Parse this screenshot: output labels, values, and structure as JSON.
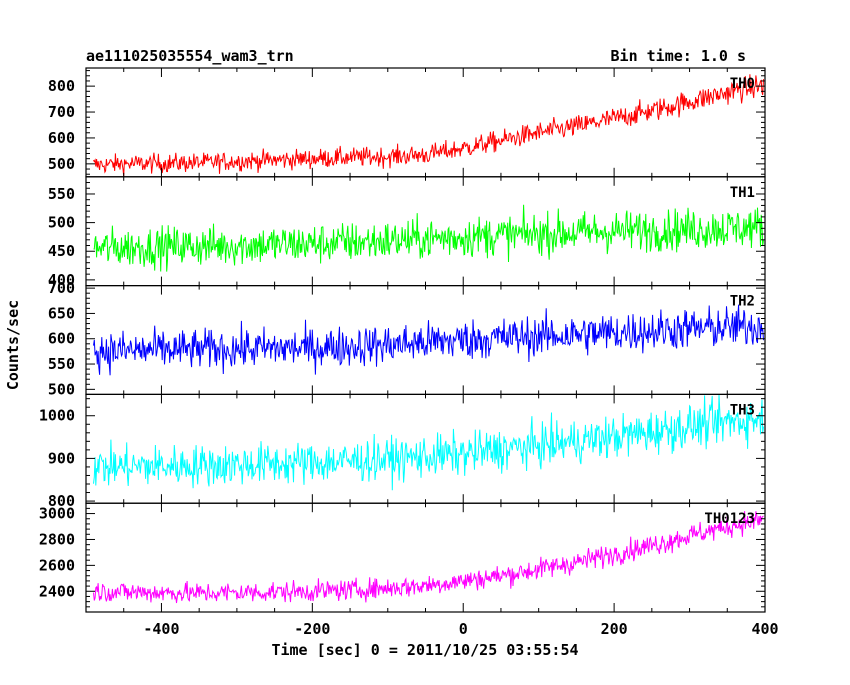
{
  "header": {
    "left_title": "ae111025035554_wam3_trn",
    "right_title": "Bin time: 1.0 s"
  },
  "chart_data": {
    "type": "line",
    "xlabel": "Time [sec] 0 = 2011/10/25 03:55:54",
    "ylabel": "Counts/sec",
    "xlim": [
      -500,
      400
    ],
    "x_ticks": [
      -400,
      -200,
      0,
      200,
      400
    ],
    "bin_time_s": 1.0,
    "grid": false,
    "panels": [
      {
        "label": "TH0",
        "color": "#ff0000",
        "ylim": [
          450,
          870
        ],
        "y_ticks": [
          500,
          600,
          700,
          800
        ],
        "points": [
          [
            -500,
            495
          ],
          [
            -450,
            500
          ],
          [
            -400,
            502
          ],
          [
            -350,
            505
          ],
          [
            -300,
            510
          ],
          [
            -250,
            515
          ],
          [
            -200,
            520
          ],
          [
            -150,
            525
          ],
          [
            -100,
            528
          ],
          [
            -50,
            535
          ],
          [
            0,
            560
          ],
          [
            50,
            590
          ],
          [
            100,
            620
          ],
          [
            150,
            645
          ],
          [
            200,
            675
          ],
          [
            250,
            705
          ],
          [
            300,
            740
          ],
          [
            350,
            775
          ],
          [
            400,
            805
          ]
        ]
      },
      {
        "label": "TH1",
        "color": "#00ff00",
        "ylim": [
          390,
          580
        ],
        "y_ticks": [
          400,
          450,
          500,
          550
        ],
        "points": [
          [
            -500,
            455
          ],
          [
            -400,
            458
          ],
          [
            -300,
            460
          ],
          [
            -200,
            463
          ],
          [
            -100,
            468
          ],
          [
            0,
            475
          ],
          [
            100,
            480
          ],
          [
            200,
            485
          ],
          [
            300,
            488
          ],
          [
            400,
            492
          ]
        ]
      },
      {
        "label": "TH2",
        "color": "#0000ff",
        "ylim": [
          490,
          705
        ],
        "y_ticks": [
          500,
          550,
          600,
          650,
          700
        ],
        "points": [
          [
            -500,
            575
          ],
          [
            -400,
            578
          ],
          [
            -300,
            580
          ],
          [
            -200,
            582
          ],
          [
            -100,
            588
          ],
          [
            0,
            598
          ],
          [
            100,
            605
          ],
          [
            200,
            612
          ],
          [
            300,
            620
          ],
          [
            400,
            625
          ]
        ]
      },
      {
        "label": "TH3",
        "color": "#00ffff",
        "ylim": [
          795,
          1050
        ],
        "y_ticks": [
          800,
          900,
          1000
        ],
        "points": [
          [
            -500,
            880
          ],
          [
            -400,
            882
          ],
          [
            -300,
            885
          ],
          [
            -200,
            890
          ],
          [
            -100,
            898
          ],
          [
            0,
            910
          ],
          [
            100,
            930
          ],
          [
            200,
            950
          ],
          [
            300,
            975
          ],
          [
            400,
            995
          ]
        ]
      },
      {
        "label": "TH0123",
        "color": "#ff00ff",
        "ylim": [
          2240,
          3080
        ],
        "y_ticks": [
          2400,
          2600,
          2800,
          3000
        ],
        "points": [
          [
            -500,
            2400
          ],
          [
            -450,
            2395
          ],
          [
            -400,
            2390
          ],
          [
            -350,
            2385
          ],
          [
            -300,
            2390
          ],
          [
            -250,
            2395
          ],
          [
            -200,
            2400
          ],
          [
            -150,
            2410
          ],
          [
            -100,
            2425
          ],
          [
            -50,
            2445
          ],
          [
            0,
            2480
          ],
          [
            50,
            2520
          ],
          [
            100,
            2570
          ],
          [
            150,
            2625
          ],
          [
            200,
            2690
          ],
          [
            250,
            2755
          ],
          [
            300,
            2830
          ],
          [
            350,
            2900
          ],
          [
            400,
            2960
          ]
        ]
      }
    ]
  }
}
